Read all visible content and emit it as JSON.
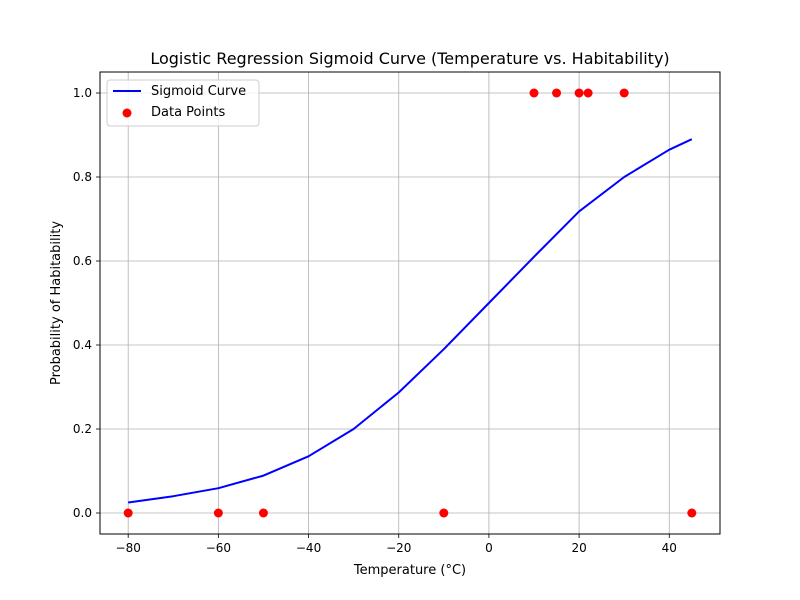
{
  "chart_data": {
    "type": "scatter",
    "title": "Logistic Regression Sigmoid Curve (Temperature vs. Habitability)",
    "xlabel": "Temperature (°C)",
    "ylabel": "Probability of Habitability",
    "xlim": [
      -86.25,
      51.25
    ],
    "ylim": [
      -0.05,
      1.05
    ],
    "xticks": [
      -80,
      -60,
      -40,
      -20,
      0,
      20,
      40
    ],
    "xtick_labels": [
      "−80",
      "−60",
      "−40",
      "−20",
      "0",
      "20",
      "40"
    ],
    "yticks": [
      0.0,
      0.2,
      0.4,
      0.6,
      0.8,
      1.0
    ],
    "ytick_labels": [
      "0.0",
      "0.2",
      "0.4",
      "0.6",
      "0.8",
      "1.0"
    ],
    "grid": true,
    "legend_position": "upper-left",
    "series": [
      {
        "name": "Sigmoid Curve",
        "kind": "line",
        "color": "#0000ff",
        "x": [
          -80,
          -70,
          -60,
          -50,
          -40,
          -30,
          -20,
          -10,
          0,
          10,
          20,
          30,
          40,
          45
        ],
        "y": [
          0.025,
          0.04,
          0.059,
          0.089,
          0.135,
          0.2,
          0.287,
          0.39,
          0.5,
          0.61,
          0.718,
          0.8,
          0.865,
          0.89
        ]
      },
      {
        "name": "Data Points",
        "kind": "scatter",
        "color": "#ff0000",
        "x": [
          -80,
          -60,
          -50,
          -10,
          10,
          15,
          20,
          22,
          30,
          45
        ],
        "y": [
          0,
          0,
          0,
          0,
          1,
          1,
          1,
          1,
          1,
          0
        ]
      }
    ]
  }
}
